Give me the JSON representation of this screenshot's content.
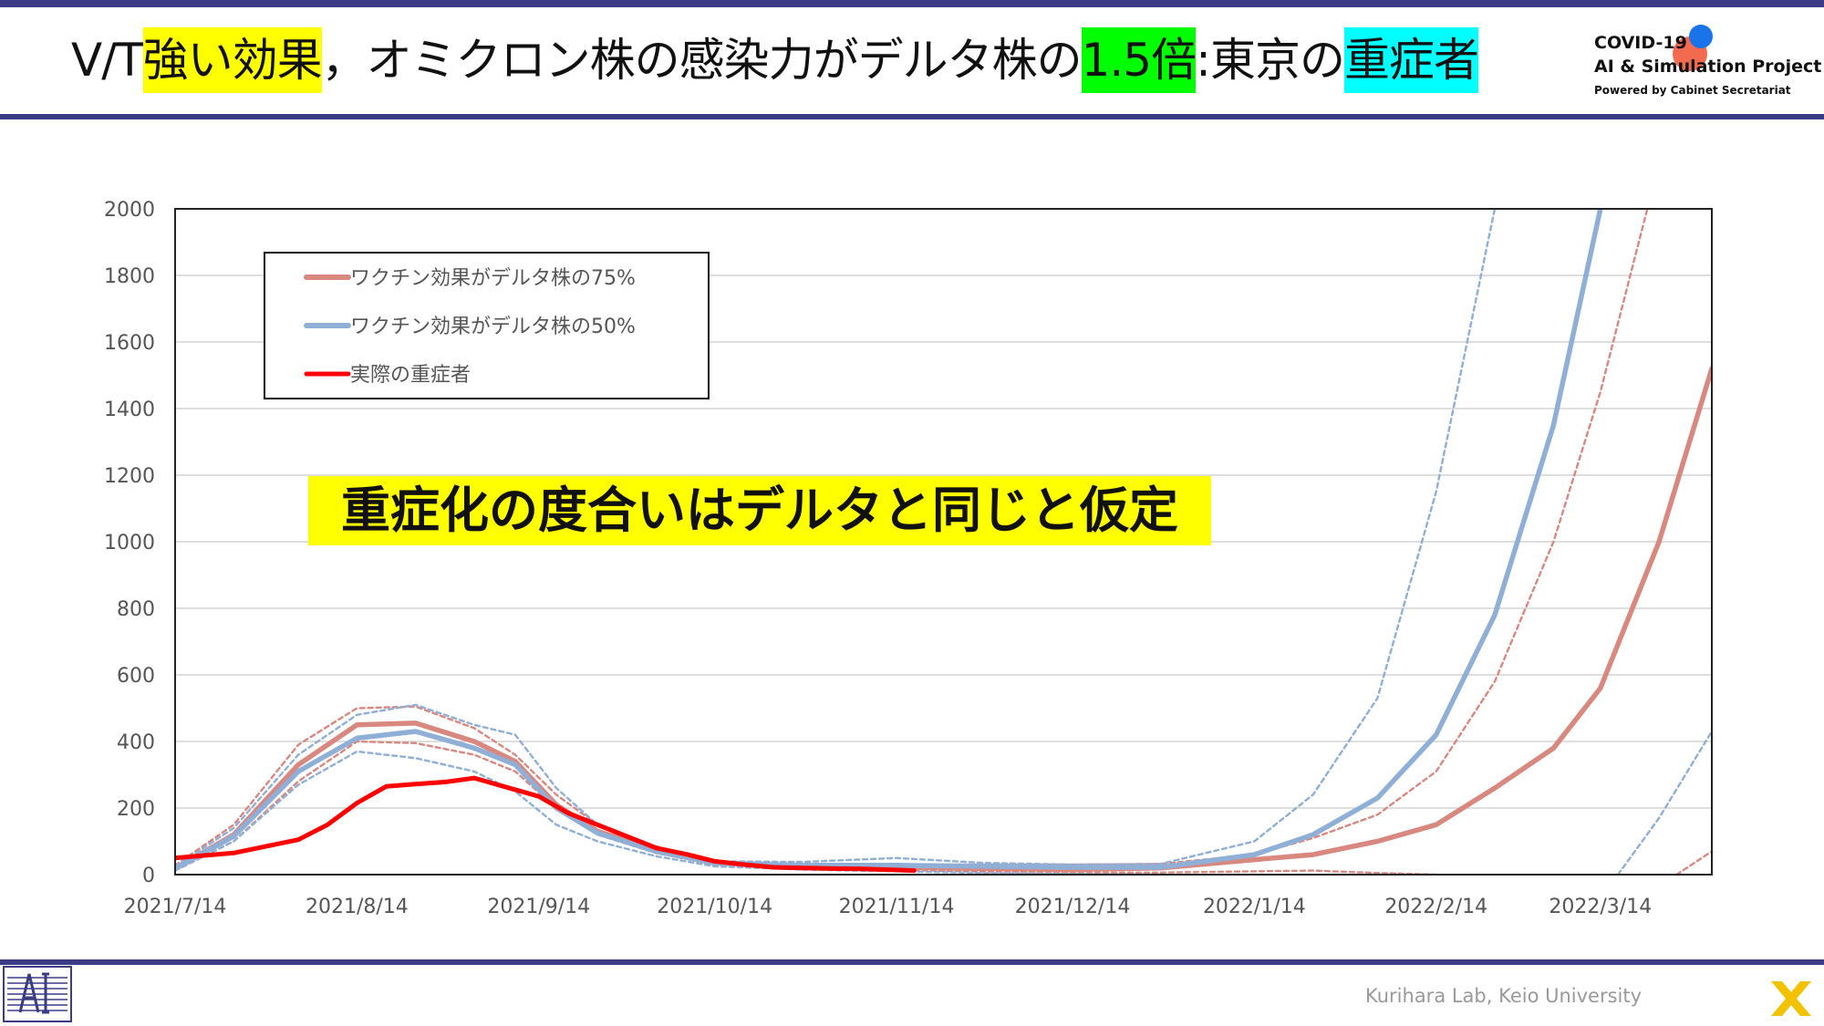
{
  "header": {
    "title_segments": [
      {
        "text": "V/T",
        "bg": ""
      },
      {
        "text": "強い効果",
        "bg": "#ffff00"
      },
      {
        "text": "，オミクロン株の感染力がデルタ株の",
        "bg": ""
      },
      {
        "text": "1.5倍",
        "bg": "#00ff00"
      },
      {
        "text": ":東京の",
        "bg": ""
      },
      {
        "text": "重症者",
        "bg": "#00ffff"
      }
    ],
    "brand_line1": "COVID-19",
    "brand_line2": "AI & Simulation Project",
    "brand_line3": "Powered by Cabinet Secretariat"
  },
  "annotation": "重症化の度合いはデルタと同じと仮定",
  "footer": {
    "lab": "Kurihara Lab, Keio University"
  },
  "colors": {
    "rule": "#3b3b86",
    "pink": "#d98880",
    "blue": "#8fafd6",
    "red": "#ff0000"
  },
  "chart_data": {
    "type": "line",
    "x_type": "date",
    "xlim": [
      "2021-07-14",
      "2022-04-02"
    ],
    "ylim": [
      0,
      2000
    ],
    "y_ticks": [
      0,
      200,
      400,
      600,
      800,
      1000,
      1200,
      1400,
      1600,
      1800,
      2000
    ],
    "x_ticks": [
      "2021/7/14",
      "2021/8/14",
      "2021/9/14",
      "2021/10/14",
      "2021/11/14",
      "2021/12/14",
      "2022/1/14",
      "2022/2/14",
      "2022/3/14"
    ],
    "x_tick_dates": [
      "2021-07-14",
      "2021-08-14",
      "2021-09-14",
      "2021-10-14",
      "2021-11-14",
      "2021-12-14",
      "2022-01-14",
      "2022-02-14",
      "2022-03-14"
    ],
    "grid": "horizontal",
    "legend": "top-left",
    "series": [
      {
        "name": "ワクチン効果がデルタ株の75%",
        "color": "#d98880",
        "style": "solid",
        "points": [
          [
            "2021-07-14",
            18
          ],
          [
            "2021-07-24",
            120
          ],
          [
            "2021-08-04",
            330
          ],
          [
            "2021-08-14",
            450
          ],
          [
            "2021-08-24",
            455
          ],
          [
            "2021-09-03",
            400
          ],
          [
            "2021-09-10",
            340
          ],
          [
            "2021-09-17",
            210
          ],
          [
            "2021-09-24",
            130
          ],
          [
            "2021-10-04",
            75
          ],
          [
            "2021-10-14",
            35
          ],
          [
            "2021-10-29",
            25
          ],
          [
            "2021-11-14",
            22
          ],
          [
            "2021-11-29",
            18
          ],
          [
            "2021-12-14",
            15
          ],
          [
            "2021-12-29",
            20
          ],
          [
            "2022-01-14",
            45
          ],
          [
            "2022-01-24",
            60
          ],
          [
            "2022-02-04",
            100
          ],
          [
            "2022-02-14",
            150
          ],
          [
            "2022-02-24",
            260
          ],
          [
            "2022-03-06",
            380
          ],
          [
            "2022-03-14",
            560
          ],
          [
            "2022-03-24",
            1000
          ],
          [
            "2022-04-02",
            1520
          ]
        ]
      },
      {
        "name": "",
        "color": "#d98880",
        "style": "dashed",
        "points": [
          [
            "2021-07-14",
            28
          ],
          [
            "2021-07-24",
            150
          ],
          [
            "2021-08-04",
            390
          ],
          [
            "2021-08-14",
            500
          ],
          [
            "2021-08-24",
            505
          ],
          [
            "2021-09-03",
            440
          ],
          [
            "2021-09-10",
            360
          ],
          [
            "2021-09-17",
            240
          ],
          [
            "2021-09-24",
            150
          ],
          [
            "2021-10-04",
            85
          ],
          [
            "2021-10-14",
            40
          ],
          [
            "2021-10-29",
            30
          ],
          [
            "2021-11-14",
            30
          ],
          [
            "2021-11-29",
            30
          ],
          [
            "2021-12-14",
            30
          ],
          [
            "2021-12-29",
            32
          ],
          [
            "2022-01-14",
            60
          ],
          [
            "2022-01-24",
            110
          ],
          [
            "2022-02-04",
            180
          ],
          [
            "2022-02-14",
            310
          ],
          [
            "2022-02-24",
            580
          ],
          [
            "2022-03-06",
            1000
          ],
          [
            "2022-03-14",
            1450
          ],
          [
            "2022-03-22",
            2000
          ]
        ]
      },
      {
        "name": "",
        "color": "#d98880",
        "style": "dashed",
        "points": [
          [
            "2021-07-14",
            12
          ],
          [
            "2021-07-24",
            100
          ],
          [
            "2021-08-04",
            280
          ],
          [
            "2021-08-14",
            400
          ],
          [
            "2021-08-24",
            395
          ],
          [
            "2021-09-03",
            360
          ],
          [
            "2021-09-10",
            310
          ],
          [
            "2021-09-17",
            200
          ],
          [
            "2021-09-24",
            120
          ],
          [
            "2021-10-04",
            65
          ],
          [
            "2021-10-14",
            30
          ],
          [
            "2021-10-29",
            20
          ],
          [
            "2021-11-14",
            15
          ],
          [
            "2021-11-29",
            8
          ],
          [
            "2021-12-14",
            6
          ],
          [
            "2021-12-29",
            6
          ],
          [
            "2022-01-14",
            10
          ],
          [
            "2022-01-24",
            12
          ],
          [
            "2022-02-04",
            5
          ],
          [
            "2022-02-14",
            0
          ]
        ]
      },
      {
        "name": "",
        "color": "#d98880",
        "style": "dashed",
        "points": [
          [
            "2022-03-27",
            0
          ],
          [
            "2022-04-02",
            70
          ]
        ]
      },
      {
        "name": "ワクチン効果がデルタ株の50%",
        "color": "#8fafd6",
        "style": "solid",
        "points": [
          [
            "2021-07-14",
            18
          ],
          [
            "2021-07-24",
            115
          ],
          [
            "2021-08-04",
            310
          ],
          [
            "2021-08-14",
            410
          ],
          [
            "2021-08-24",
            430
          ],
          [
            "2021-09-03",
            380
          ],
          [
            "2021-09-10",
            330
          ],
          [
            "2021-09-17",
            200
          ],
          [
            "2021-09-24",
            125
          ],
          [
            "2021-10-04",
            70
          ],
          [
            "2021-10-14",
            35
          ],
          [
            "2021-10-29",
            28
          ],
          [
            "2021-11-14",
            28
          ],
          [
            "2021-11-29",
            25
          ],
          [
            "2021-12-14",
            22
          ],
          [
            "2021-12-29",
            22
          ],
          [
            "2022-01-14",
            60
          ],
          [
            "2022-01-24",
            120
          ],
          [
            "2022-02-04",
            230
          ],
          [
            "2022-02-14",
            420
          ],
          [
            "2022-02-24",
            780
          ],
          [
            "2022-03-06",
            1350
          ],
          [
            "2022-03-14",
            2000
          ]
        ]
      },
      {
        "name": "",
        "color": "#8fafd6",
        "style": "dashed",
        "points": [
          [
            "2021-07-14",
            24
          ],
          [
            "2021-07-24",
            140
          ],
          [
            "2021-08-04",
            360
          ],
          [
            "2021-08-14",
            480
          ],
          [
            "2021-08-24",
            510
          ],
          [
            "2021-09-03",
            450
          ],
          [
            "2021-09-10",
            420
          ],
          [
            "2021-09-17",
            260
          ],
          [
            "2021-09-24",
            150
          ],
          [
            "2021-10-04",
            80
          ],
          [
            "2021-10-14",
            40
          ],
          [
            "2021-10-29",
            38
          ],
          [
            "2021-11-14",
            50
          ],
          [
            "2021-11-29",
            35
          ],
          [
            "2021-12-14",
            30
          ],
          [
            "2021-12-29",
            32
          ],
          [
            "2022-01-14",
            100
          ],
          [
            "2022-01-24",
            240
          ],
          [
            "2022-02-04",
            530
          ],
          [
            "2022-02-14",
            1150
          ],
          [
            "2022-02-24",
            2000
          ]
        ]
      },
      {
        "name": "",
        "color": "#8fafd6",
        "style": "dashed",
        "points": [
          [
            "2021-07-14",
            12
          ],
          [
            "2021-07-24",
            100
          ],
          [
            "2021-08-04",
            270
          ],
          [
            "2021-08-14",
            370
          ],
          [
            "2021-08-24",
            350
          ],
          [
            "2021-09-03",
            310
          ],
          [
            "2021-09-10",
            250
          ],
          [
            "2021-09-17",
            150
          ],
          [
            "2021-09-24",
            100
          ],
          [
            "2021-10-04",
            55
          ],
          [
            "2021-10-14",
            25
          ],
          [
            "2021-10-29",
            15
          ],
          [
            "2021-11-14",
            10
          ],
          [
            "2021-11-29",
            5
          ],
          [
            "2021-12-14",
            2
          ],
          [
            "2021-12-29",
            0
          ]
        ]
      },
      {
        "name": "",
        "color": "#8fafd6",
        "style": "dashed",
        "points": [
          [
            "2022-03-17",
            0
          ],
          [
            "2022-03-24",
            170
          ],
          [
            "2022-04-02",
            430
          ]
        ]
      },
      {
        "name": "実際の重症者",
        "color": "#ff0000",
        "style": "solid",
        "points": [
          [
            "2021-07-14",
            50
          ],
          [
            "2021-07-24",
            65
          ],
          [
            "2021-08-04",
            105
          ],
          [
            "2021-08-09",
            150
          ],
          [
            "2021-08-14",
            215
          ],
          [
            "2021-08-19",
            265
          ],
          [
            "2021-08-24",
            272
          ],
          [
            "2021-08-29",
            278
          ],
          [
            "2021-09-03",
            290
          ],
          [
            "2021-09-08",
            265
          ],
          [
            "2021-09-14",
            235
          ],
          [
            "2021-09-19",
            185
          ],
          [
            "2021-09-24",
            150
          ],
          [
            "2021-09-29",
            115
          ],
          [
            "2021-10-04",
            80
          ],
          [
            "2021-10-09",
            62
          ],
          [
            "2021-10-14",
            40
          ],
          [
            "2021-10-19",
            30
          ],
          [
            "2021-10-24",
            22
          ],
          [
            "2021-10-29",
            20
          ],
          [
            "2021-11-03",
            18
          ],
          [
            "2021-11-08",
            17
          ],
          [
            "2021-11-14",
            14
          ],
          [
            "2021-11-17",
            12
          ]
        ]
      }
    ]
  }
}
